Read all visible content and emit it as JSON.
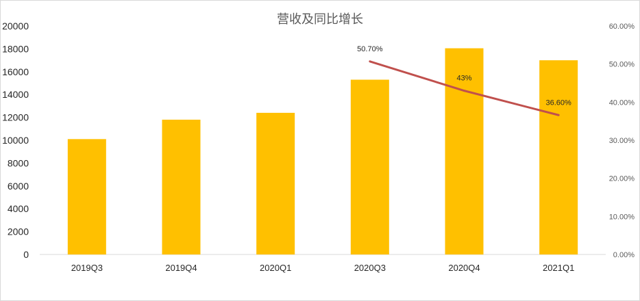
{
  "chart_data": {
    "type": "bar",
    "title": "营收及同比增长",
    "categories": [
      "2019Q3",
      "2019Q4",
      "2020Q1",
      "2020Q3",
      "2020Q4",
      "2021Q1"
    ],
    "series": [
      {
        "type": "bar",
        "axis": "left",
        "color": "#FFC000",
        "values": [
          10100,
          11800,
          12400,
          15300,
          18050,
          17000
        ]
      },
      {
        "type": "line",
        "axis": "right",
        "color": "#C0504D",
        "x": [
          "2020Q3",
          "2020Q4",
          "2021Q1"
        ],
        "values": [
          50.7,
          43.0,
          36.6
        ],
        "labels": [
          "50.70%",
          "43%",
          "36.60%"
        ]
      }
    ],
    "ylim": [
      0,
      20000
    ],
    "yticks": [
      "0",
      "2000",
      "4000",
      "6000",
      "8000",
      "10000",
      "12000",
      "14000",
      "16000",
      "18000",
      "20000"
    ],
    "y2lim": [
      0,
      60
    ],
    "y2ticks": [
      "0.00%",
      "10.00%",
      "20.00%",
      "30.00%",
      "40.00%",
      "50.00%",
      "60.00%"
    ],
    "grid": false,
    "legend": "none"
  }
}
